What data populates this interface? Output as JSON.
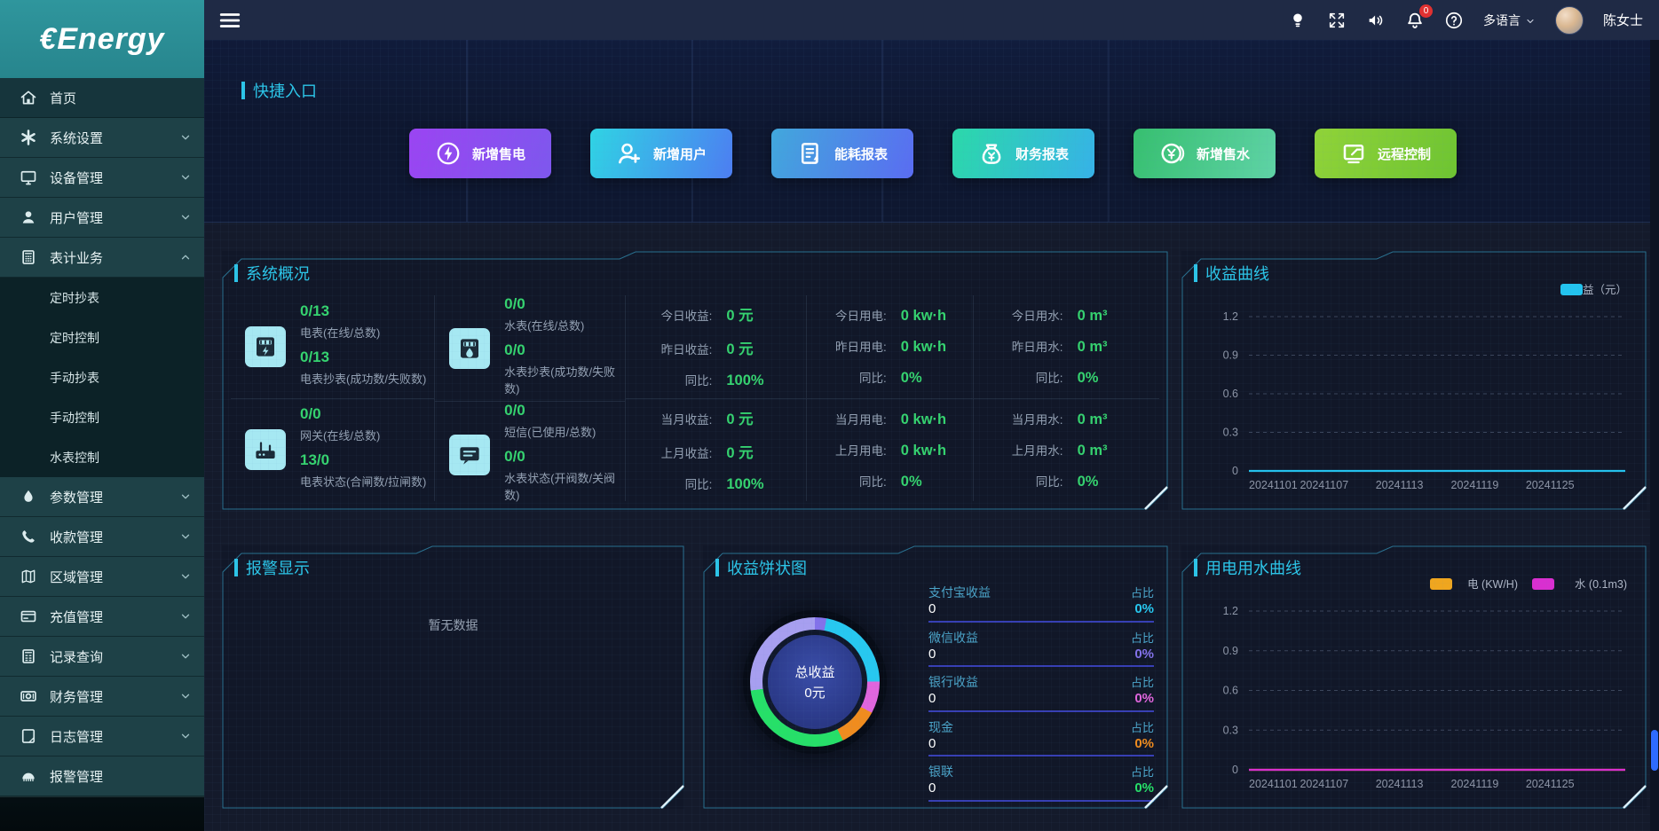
{
  "brand": {
    "logo": "€Energy"
  },
  "topbar": {
    "icons": [
      {
        "key": "bulb"
      },
      {
        "key": "fullscreen"
      },
      {
        "key": "volume"
      },
      {
        "key": "bell",
        "badge": "0"
      },
      {
        "key": "help"
      }
    ],
    "language_label": "多语言",
    "user_name": "陈女士"
  },
  "sidebar": {
    "items": [
      {
        "key": "home",
        "label": "首页",
        "icon": "home",
        "active": true
      },
      {
        "key": "system-settings",
        "label": "系统设置",
        "icon": "gear",
        "chevron": true
      },
      {
        "key": "device-management",
        "label": "设备管理",
        "icon": "monitor",
        "chevron": true
      },
      {
        "key": "user-management",
        "label": "用户管理",
        "icon": "user",
        "chevron": true
      },
      {
        "key": "meter-business",
        "label": "表计业务",
        "icon": "meter",
        "chevron": true,
        "expanded": true,
        "children": [
          {
            "key": "timed-reading",
            "label": "定时抄表"
          },
          {
            "key": "timed-control",
            "label": "定时控制"
          },
          {
            "key": "manual-reading",
            "label": "手动抄表"
          },
          {
            "key": "manual-control",
            "label": "手动控制"
          },
          {
            "key": "water-meter-control",
            "label": "水表控制"
          }
        ]
      },
      {
        "key": "parameter-management",
        "label": "参数管理",
        "icon": "droplet",
        "chevron": true
      },
      {
        "key": "payment-management",
        "label": "收款管理",
        "icon": "phone",
        "chevron": true
      },
      {
        "key": "region-management",
        "label": "区域管理",
        "icon": "map",
        "chevron": true
      },
      {
        "key": "recharge-management",
        "label": "充值管理",
        "icon": "card",
        "chevron": true
      },
      {
        "key": "record-query",
        "label": "记录查询",
        "icon": "records",
        "chevron": true
      },
      {
        "key": "finance-management",
        "label": "财务管理",
        "icon": "money",
        "chevron": true
      },
      {
        "key": "log-management",
        "label": "日志管理",
        "icon": "log",
        "chevron": true
      },
      {
        "key": "alarm-management",
        "label": "报警管理",
        "icon": "alarm"
      }
    ]
  },
  "quick_entry": {
    "title": "快捷入口",
    "buttons": [
      {
        "key": "add-electric-sale",
        "label": "新增售电",
        "icon": "bolt",
        "g1": "#9b44f2",
        "g2": "#7e57ee"
      },
      {
        "key": "add-user",
        "label": "新增用户",
        "icon": "user-plus",
        "g1": "#2fd4e4",
        "g2": "#4d7df2"
      },
      {
        "key": "energy-report",
        "label": "能耗报表",
        "icon": "energy-report",
        "g1": "#41a8dc",
        "g2": "#5a6cf2"
      },
      {
        "key": "finance-report",
        "label": "财务报表",
        "icon": "money-bag",
        "g1": "#2bd9a9",
        "g2": "#36b2e8"
      },
      {
        "key": "add-water-sale",
        "label": "新增售水",
        "icon": "coin",
        "g1": "#36bf6f",
        "g2": "#5fd3a6"
      },
      {
        "key": "remote-control",
        "label": "远程控制",
        "icon": "remote",
        "g1": "#90d338",
        "g2": "#6ec432"
      }
    ]
  },
  "system_overview": {
    "title": "系统概况",
    "meter_columns": [
      {
        "blocks": [
          {
            "icon": "electric-meter",
            "stats": [
              {
                "value": "0/13",
                "label": "电表(在线/总数)"
              },
              {
                "value": "0/13",
                "label": "电表抄表(成功数/失败数)"
              }
            ]
          },
          {
            "icon": "gateway",
            "stats": [
              {
                "value": "0/0",
                "label": "网关(在线/总数)"
              },
              {
                "value": "13/0",
                "label": "电表状态(合闸数/拉闸数)"
              }
            ]
          }
        ]
      },
      {
        "blocks": [
          {
            "icon": "water-meter",
            "stats": [
              {
                "value": "0/0",
                "label": "水表(在线/总数)"
              },
              {
                "value": "0/0",
                "label": "水表抄表(成功数/失败数)"
              }
            ]
          },
          {
            "icon": "sms",
            "stats": [
              {
                "value": "0/0",
                "label": "短信(已使用/总数)"
              },
              {
                "value": "0/0",
                "label": "水表状态(开阀数/关阀数)"
              }
            ]
          }
        ]
      }
    ],
    "stat_columns": [
      {
        "groups": [
          [
            {
              "label": "今日收益:",
              "value": "0 元"
            },
            {
              "label": "昨日收益:",
              "value": "0 元"
            },
            {
              "label": "同比:",
              "value": "100%"
            }
          ],
          [
            {
              "label": "当月收益:",
              "value": "0 元"
            },
            {
              "label": "上月收益:",
              "value": "0 元"
            },
            {
              "label": "同比:",
              "value": "100%"
            }
          ]
        ]
      },
      {
        "groups": [
          [
            {
              "label": "今日用电:",
              "value": "0 kw·h"
            },
            {
              "label": "昨日用电:",
              "value": "0 kw·h"
            },
            {
              "label": "同比:",
              "value": "0%"
            }
          ],
          [
            {
              "label": "当月用电:",
              "value": "0 kw·h"
            },
            {
              "label": "上月用电:",
              "value": "0 kw·h"
            },
            {
              "label": "同比:",
              "value": "0%"
            }
          ]
        ]
      },
      {
        "groups": [
          [
            {
              "label": "今日用水:",
              "value": "0 m³"
            },
            {
              "label": "昨日用水:",
              "value": "0 m³"
            },
            {
              "label": "同比:",
              "value": "0%"
            }
          ],
          [
            {
              "label": "当月用水:",
              "value": "0 m³"
            },
            {
              "label": "上月用水:",
              "value": "0 m³"
            },
            {
              "label": "同比:",
              "value": "0%"
            }
          ]
        ]
      }
    ]
  },
  "alarm_panel": {
    "title": "报警显示",
    "empty_text": "暂无数据"
  },
  "pie_panel": {
    "title": "收益饼状图",
    "center_title": "总收益",
    "center_value": "0元",
    "rows": [
      {
        "key": "alipay",
        "label": "支付宝收益",
        "value": "0",
        "ratio_label": "占比",
        "ratio": "0%",
        "color": "#27c8f0"
      },
      {
        "key": "wechat",
        "label": "微信收益",
        "value": "0",
        "ratio_label": "占比",
        "ratio": "0%",
        "color": "#8372ea"
      },
      {
        "key": "bank",
        "label": "银行收益",
        "value": "0",
        "ratio_label": "占比",
        "ratio": "0%",
        "color": "#e065dd"
      },
      {
        "key": "cash",
        "label": "现金",
        "value": "0",
        "ratio_label": "占比",
        "ratio": "0%",
        "color": "#f08c1e"
      },
      {
        "key": "unionpay",
        "label": "银联",
        "value": "0",
        "ratio_label": "占比",
        "ratio": "0%",
        "color": "#26e068"
      }
    ]
  },
  "chart_data": [
    {
      "type": "line",
      "title": "收益曲线",
      "x": [
        "20241101",
        "20241107",
        "20241113",
        "20241119",
        "20241125"
      ],
      "series": [
        {
          "name": "收益（元）",
          "values": [
            0,
            0,
            0,
            0,
            0
          ],
          "color": "#23c3ee"
        }
      ],
      "ylim": [
        0,
        1.2
      ],
      "yticks": [
        0,
        0.3,
        0.6,
        0.9,
        1.2
      ],
      "grid": "dashed",
      "legend_position": "top-right"
    },
    {
      "type": "line",
      "title": "用电用水曲线",
      "x": [
        "20241101",
        "20241107",
        "20241113",
        "20241119",
        "20241125"
      ],
      "series": [
        {
          "name": "电 (KW/H)",
          "values": [
            0,
            0,
            0,
            0,
            0
          ],
          "color": "#f0a61e"
        },
        {
          "name": "水 (0.1m3)",
          "values": [
            0,
            0,
            0,
            0,
            0
          ],
          "color": "#dядin"
        }
      ],
      "ylim": [
        0,
        1.2
      ],
      "yticks": [
        0,
        0.3,
        0.6,
        0.9,
        1.2
      ],
      "grid": "dashed",
      "legend_position": "top-right"
    },
    {
      "type": "pie",
      "title": "收益饼状图",
      "center_label": "总收益 0元",
      "slices": [
        {
          "name": "支付宝收益",
          "value": 0,
          "color": "#27c8f0"
        },
        {
          "name": "微信收益",
          "value": 0,
          "color": "#8372ea"
        },
        {
          "name": "银行收益",
          "value": 0,
          "color": "#e065dd"
        },
        {
          "name": "现金",
          "value": 0,
          "color": "#f08c1e"
        },
        {
          "name": "银联",
          "value": 0,
          "color": "#26e068"
        }
      ]
    }
  ]
}
